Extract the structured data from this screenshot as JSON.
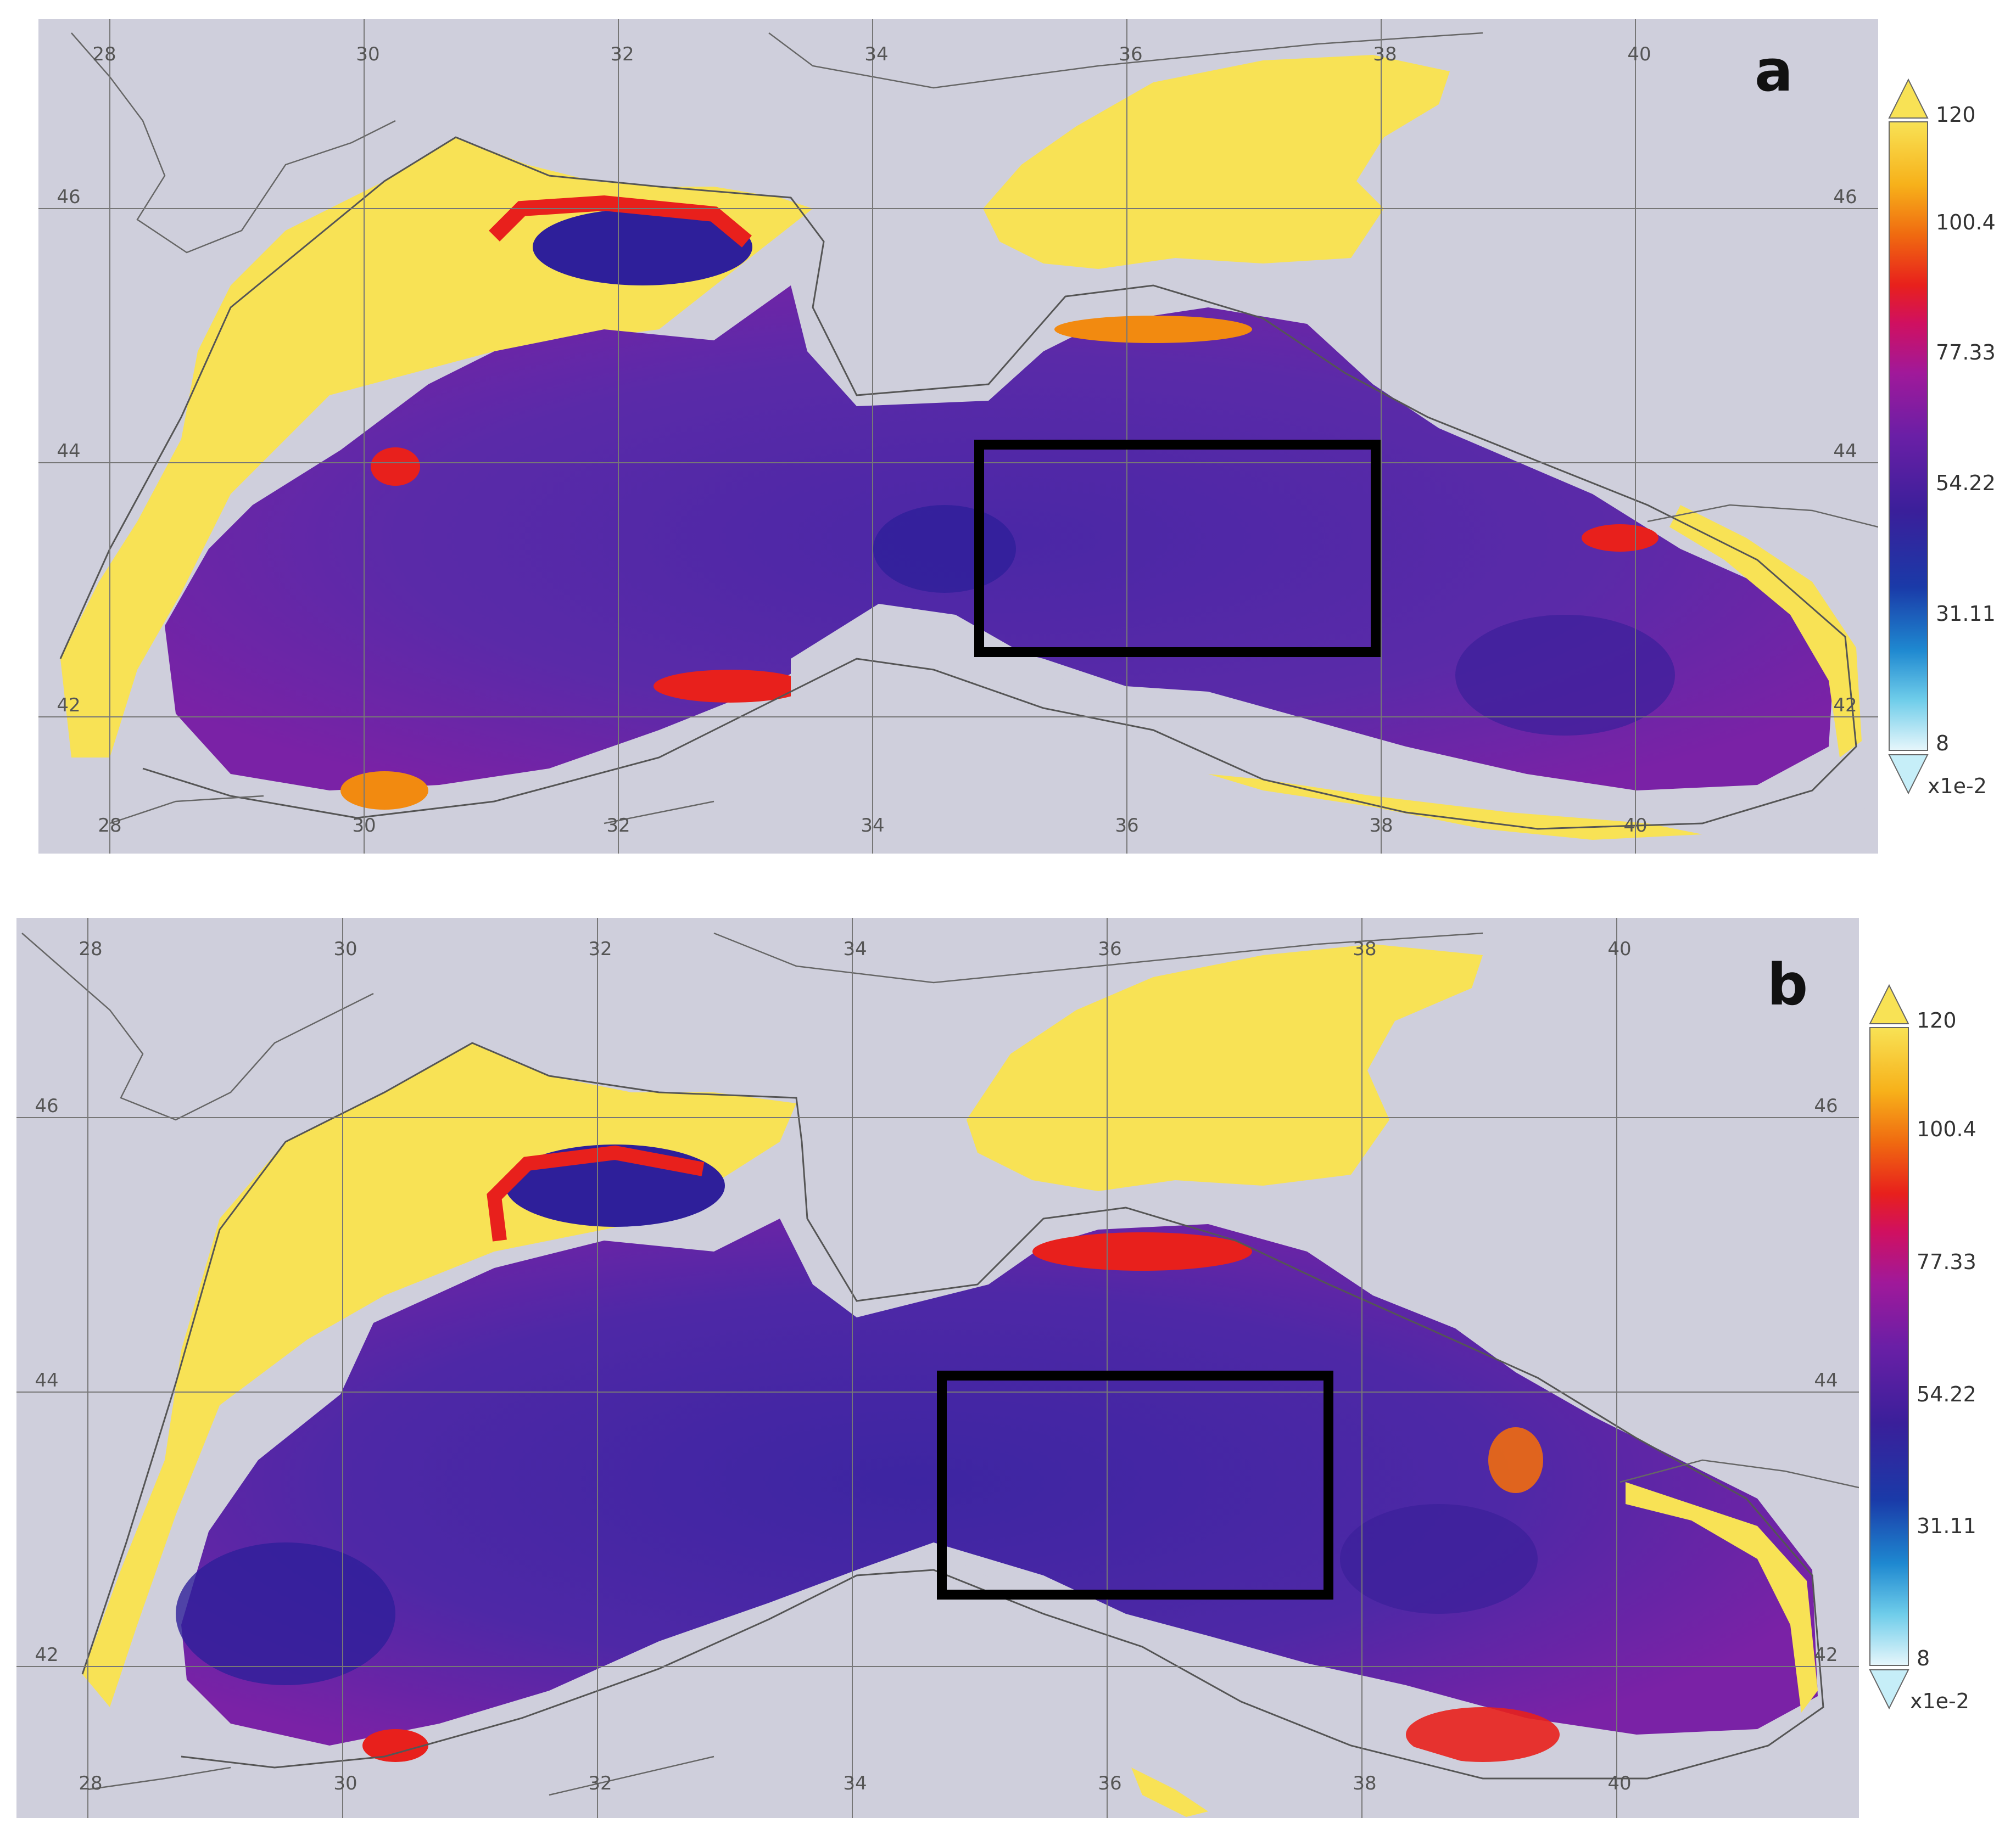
{
  "panels": [
    {
      "id": "a",
      "letter": "a",
      "lon_ticks": [
        "28",
        "30",
        "32",
        "34",
        "36",
        "38",
        "40"
      ],
      "lon_ticks_bottom": [
        "28",
        "30",
        "32",
        "34",
        "36",
        "38",
        "40"
      ],
      "lat_ticks": [
        "46",
        "44",
        "42"
      ],
      "lat_ticks_right": [
        "46",
        "44",
        "42"
      ],
      "colorbar": {
        "labels": [
          "120",
          "100.4",
          "77.33",
          "54.22",
          "31.11",
          "8"
        ],
        "unit": "x1e-2",
        "range": [
          8,
          120
        ]
      }
    },
    {
      "id": "b",
      "letter": "b",
      "lon_ticks": [
        "28",
        "30",
        "32",
        "34",
        "36",
        "38",
        "40"
      ],
      "lon_ticks_bottom": [
        "28",
        "30",
        "32",
        "34",
        "36",
        "38",
        "40"
      ],
      "lat_ticks": [
        "46",
        "44",
        "42"
      ],
      "lat_ticks_right": [
        "46",
        "44",
        "42"
      ],
      "colorbar": {
        "labels": [
          "120",
          "100.4",
          "77.33",
          "54.22",
          "31.11",
          "8"
        ],
        "unit": "x1e-2",
        "range": [
          8,
          120
        ]
      }
    }
  ],
  "colors": {
    "land": "#cfcfdc",
    "high": "#f8e255",
    "red": "#e8201c",
    "magenta": "#9e1aa0",
    "purple": "#5c2aa6",
    "blue": "#2e1f9a",
    "cyan": "#8fd7ee",
    "box": "#000000",
    "coast": "#555555",
    "grid": "#777777"
  }
}
